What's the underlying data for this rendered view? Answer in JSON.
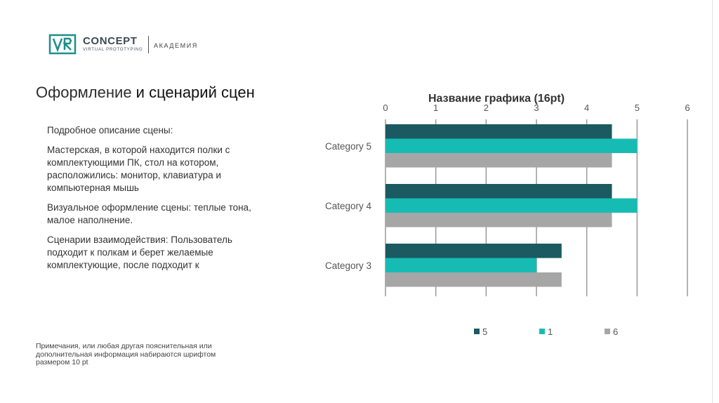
{
  "logo": {
    "brand": "CONCEPT",
    "sub": "VIRTUAL PROTOTYPING",
    "academy": "АКАДЕМИЯ",
    "mark_color": "#1e8e8a"
  },
  "title": {
    "part1": "Оформление",
    "part2": " и сценарий сцен"
  },
  "body": {
    "p1": "Подробное описание сцены:",
    "p2": "Мастерская, в которой находится полки с комплектующими ПК, стол на котором, расположились: монитор, клавиатура и компьютерная мышь",
    "p3": "Визуальное оформление сцены: теплые тона, малое наполнение.",
    "p4": "Сценарии взаимодействия: Пользователь подходит к полкам и берет желаемые комплектующие, после подходит к"
  },
  "note": "Примечания, или любая другая пояснительная или дополнительная информация набираются шрифтом размером 10 pt",
  "chart_data": {
    "type": "bar",
    "orientation": "horizontal",
    "title": "Название графика (16pt)",
    "categories": [
      "Category 5",
      "Category 4",
      "Category 3"
    ],
    "series": [
      {
        "name": "5",
        "color": "#1a5a60",
        "values": [
          4.5,
          4.5,
          3.5
        ]
      },
      {
        "name": "1",
        "color": "#16bcb4",
        "values": [
          5.0,
          5.0,
          3.0
        ]
      },
      {
        "name": "6",
        "color": "#a6a6a6",
        "values": [
          4.5,
          4.5,
          3.5
        ]
      }
    ],
    "xlim": [
      0,
      6
    ],
    "xticks": [
      "0",
      "1",
      "2",
      "3",
      "4",
      "5",
      "6"
    ],
    "grid": true,
    "legend": "bottom"
  }
}
